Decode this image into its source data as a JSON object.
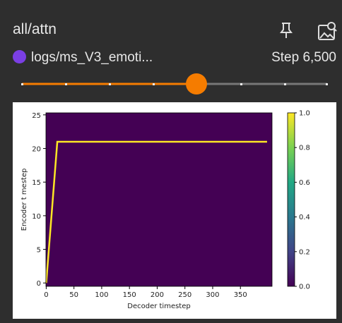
{
  "card": {
    "title": "all/attn",
    "run": "logs/ms_V3_emoti...",
    "step": "Step 6,500"
  },
  "chart_data": {
    "type": "heatmap",
    "x_label": "Decoder timestep",
    "y_label": "Encoder t mestep",
    "xlim": [
      -0.5,
      407
    ],
    "ylim": [
      -0.5,
      25.3
    ],
    "xticks": [
      0,
      50,
      100,
      150,
      200,
      250,
      300,
      350
    ],
    "yticks": [
      0,
      5,
      10,
      15,
      20,
      25
    ],
    "background_color": "#440154",
    "series": [
      {
        "color": "#fde725",
        "x": [
          0,
          20,
          398
        ],
        "y": [
          0,
          21,
          21
        ]
      }
    ],
    "colorbar": {
      "lim": [
        0,
        1
      ],
      "ticks": [
        {
          "value": 0,
          "label": "0.0"
        },
        0.2,
        0.4,
        0.6,
        0.8,
        {
          "value": 1,
          "label": "1.0"
        }
      ]
    }
  }
}
